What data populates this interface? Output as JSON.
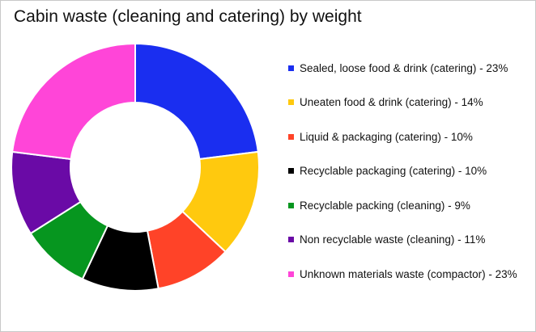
{
  "title": "Cabin waste (cleaning and catering) by weight",
  "chart_data": {
    "type": "pie",
    "title": "Cabin waste (cleaning and catering) by weight",
    "legend_position": "right",
    "slices": [
      {
        "label": "Sealed, loose food & drink (catering) - 23%",
        "value": 23,
        "color": "#1a2ef0"
      },
      {
        "label": "Uneaten food & drink (catering) - 14%",
        "value": 14,
        "color": "#ffc90e"
      },
      {
        "label": "Liquid & packaging (catering) - 10%",
        "value": 10,
        "color": "#ff4328"
      },
      {
        "label": "Recyclable packaging (catering) - 10%",
        "value": 10,
        "color": "#000000"
      },
      {
        "label": "Recyclable packing (cleaning) - 9%",
        "value": 9,
        "color": "#06961f"
      },
      {
        "label": "Non recyclable waste (cleaning) - 11%",
        "value": 11,
        "color": "#6a0aa6"
      },
      {
        "label": "Unknown materials waste (compactor) - 23%",
        "value": 23,
        "color": "#ff45d8"
      }
    ]
  }
}
